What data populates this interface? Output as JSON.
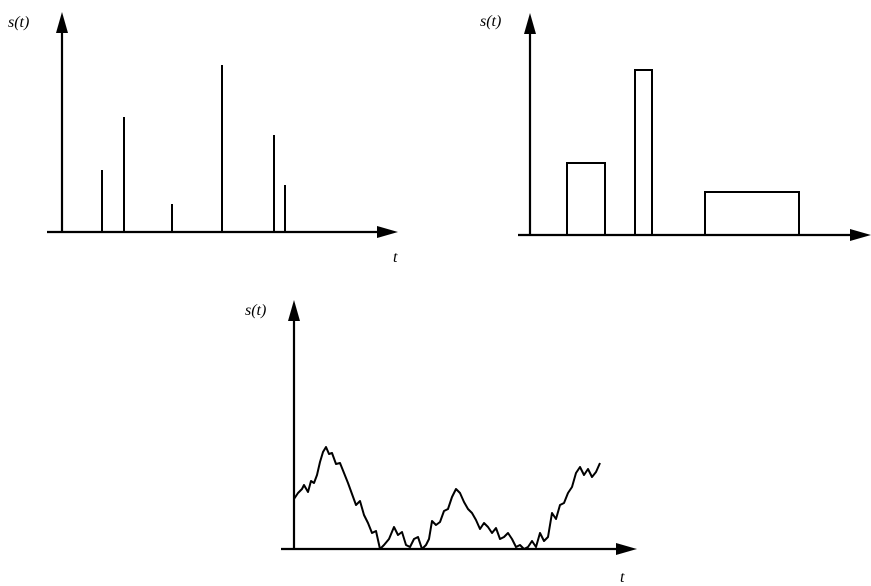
{
  "panels": [
    {
      "id": "impulses",
      "ylabel": "s(t)",
      "xlabel": "t",
      "chart_data": {
        "type": "impulse",
        "t": [
          40,
          62,
          110,
          160,
          212,
          223
        ],
        "values": [
          62,
          115,
          28,
          167,
          97,
          47
        ]
      }
    },
    {
      "id": "pulses",
      "ylabel": "s(t)",
      "xlabel": "",
      "chart_data": {
        "type": "rectangular-pulses",
        "pulses": [
          {
            "start": 37,
            "end": 75,
            "value": 72
          },
          {
            "start": 105,
            "end": 122,
            "value": 165
          },
          {
            "start": 175,
            "end": 269,
            "value": 43
          }
        ]
      }
    },
    {
      "id": "random-walk",
      "ylabel": "s(t)",
      "xlabel": "t",
      "chart_data": {
        "type": "line",
        "t": [
          0,
          4,
          8,
          10,
          14,
          17,
          20,
          23,
          26,
          29,
          32,
          35,
          38,
          42,
          46,
          50,
          54,
          58,
          62,
          66,
          70,
          74,
          78,
          82,
          86,
          90,
          95,
          100,
          104,
          108,
          112,
          116,
          120,
          124,
          128,
          132,
          135,
          138,
          142,
          146,
          150,
          154,
          158,
          162,
          166,
          170,
          174,
          178,
          182,
          186,
          190,
          194,
          198,
          202,
          206,
          210,
          214,
          218,
          222,
          226,
          230,
          234,
          238,
          242,
          246,
          250,
          254,
          258,
          262,
          266,
          270,
          274,
          278,
          282,
          286,
          290,
          294,
          298,
          302,
          306
        ],
        "values": [
          50,
          56,
          60,
          64,
          57,
          68,
          66,
          74,
          87,
          97,
          102,
          95,
          96,
          85,
          86,
          76,
          66,
          55,
          44,
          48,
          34,
          26,
          16,
          18,
          0,
          4,
          10,
          22,
          14,
          17,
          4,
          2,
          10,
          12,
          0,
          4,
          10,
          28,
          24,
          27,
          38,
          40,
          52,
          60,
          56,
          47,
          40,
          36,
          29,
          20,
          26,
          22,
          16,
          21,
          10,
          12,
          16,
          10,
          2,
          4,
          0,
          2,
          8,
          2,
          16,
          8,
          12,
          36,
          30,
          44,
          46,
          56,
          62,
          76,
          82,
          74,
          80,
          72,
          77,
          86
        ]
      }
    }
  ]
}
